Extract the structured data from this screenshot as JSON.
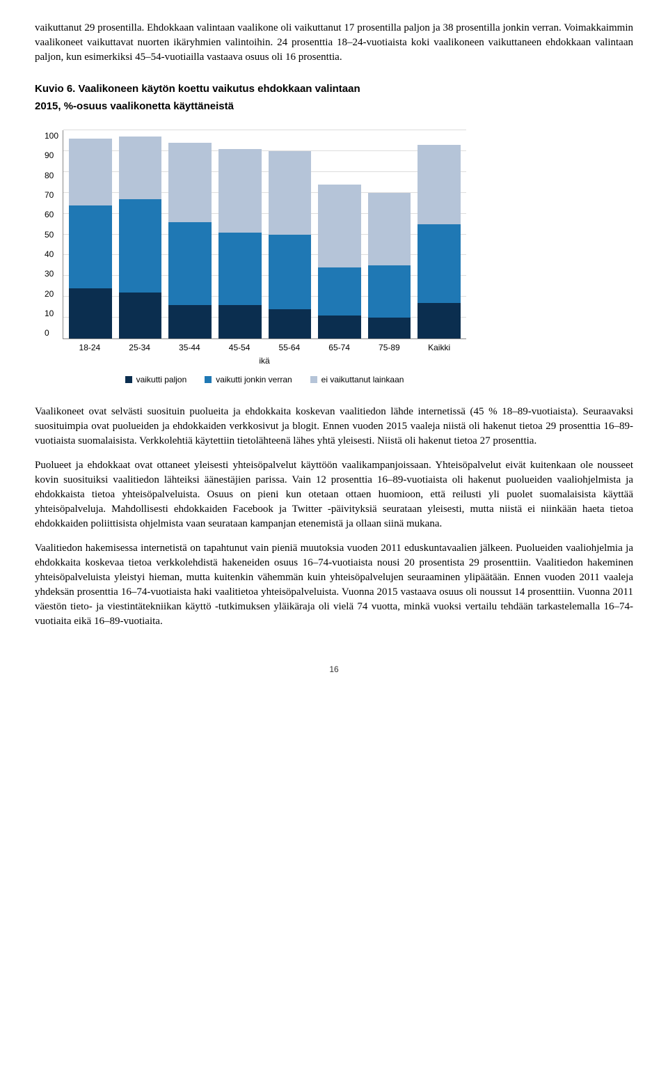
{
  "intro_paras": [
    "vaikuttanut 29 prosentilla. Ehdokkaan valintaan vaalikone oli vaikuttanut 17 prosentilla paljon ja 38 prosentilla jonkin verran. Voimakkaimmin vaalikoneet vaikuttavat nuorten ikäryhmien valintoihin. 24 prosenttia 18–24-vuotiaista koki vaalikoneen vaikuttaneen ehdokkaan valintaan paljon, kun esimerkiksi 45–54-vuotiailla vastaava osuus oli 16 prosenttia."
  ],
  "figure": {
    "title": "Kuvio 6. Vaalikoneen käytön koettu vaikutus ehdokkaan valintaan",
    "subtitle": "2015, %-osuus vaalikonetta käyttäneistä"
  },
  "chart": {
    "type": "stacked_bar",
    "y_label": "%-osuus vaalikonetta käyttäneistä",
    "x_label": "ikä",
    "ylim": [
      0,
      100
    ],
    "ytick_step": 10,
    "categories": [
      "18-24",
      "25-34",
      "35-44",
      "45-54",
      "55-64",
      "65-74",
      "75-89",
      "Kaikki"
    ],
    "series": [
      {
        "name": "vaikutti paljon",
        "color": "#0b2e4f",
        "values": [
          24,
          22,
          16,
          16,
          14,
          11,
          10,
          17
        ]
      },
      {
        "name": "vaikutti jonkin verran",
        "color": "#1f78b4",
        "values": [
          40,
          45,
          40,
          35,
          36,
          23,
          25,
          38
        ]
      },
      {
        "name": "ei vaikuttanut lainkaan",
        "color": "#b5c4d8",
        "values": [
          32,
          30,
          38,
          40,
          40,
          40,
          35,
          38
        ]
      }
    ],
    "background_color": "#ffffff",
    "grid_color": "#dddddd"
  },
  "body_paras": [
    "Vaalikoneet ovat selvästi suosituin puolueita ja ehdokkaita koskevan vaalitiedon lähde internetissä (45 % 18–89-vuotiaista). Seuraavaksi suosituimpia ovat puolueiden ja ehdokkaiden verkkosivut ja blogit. Ennen vuoden 2015 vaaleja niistä oli hakenut tietoa 29 prosenttia 16–89-vuotiaista suomalaisista. Verkkolehtiä käytettiin tietolähteenä lähes yhtä yleisesti. Niistä oli hakenut tietoa 27 prosenttia.",
    "Puolueet ja ehdokkaat ovat ottaneet yleisesti yhteisöpalvelut käyttöön vaalikampanjoissaan. Yhteisöpalvelut eivät kuitenkaan ole nousseet kovin suosituiksi vaalitiedon lähteiksi äänestäjien parissa. Vain 12 prosenttia 16–89-vuotiaista oli hakenut puolueiden vaaliohjelmista ja ehdokkaista tietoa yhteisöpalveluista. Osuus on pieni kun otetaan ottaen huomioon, että reilusti yli puolet suomalaisista käyttää yhteisöpalveluja. Mahdollisesti ehdokkaiden Facebook ja Twitter -päivityksiä seurataan yleisesti, mutta niistä ei niinkään haeta tietoa ehdokkaiden poliittisista ohjelmista vaan seurataan kampanjan etenemistä ja ollaan siinä mukana.",
    "Vaalitiedon hakemisessa internetistä on tapahtunut vain pieniä muutoksia vuoden 2011 eduskuntavaalien jälkeen. Puolueiden vaaliohjelmia ja ehdokkaita koskevaa tietoa verkkolehdistä hakeneiden osuus 16–74-vuotiaista nousi 20 prosentista 29 prosenttiin. Vaalitiedon hakeminen yhteisöpalveluista yleistyi hieman, mutta kuitenkin vähemmän kuin yhteisöpalvelujen seuraaminen ylipäätään. Ennen vuoden 2011 vaaleja yhdeksän prosenttia 16–74-vuotiaista haki vaalitietoa yhteisöpalveluista. Vuonna 2015 vastaava osuus oli noussut 14 prosenttiin. Vuonna 2011 väestön tieto- ja viestintätekniikan käyttö -tutkimuksen yläikäraja oli vielä 74 vuotta, minkä vuoksi vertailu tehdään tarkastelemalla 16–74-vuotiaita eikä 16–89-vuotiaita."
  ],
  "page_number": "16"
}
